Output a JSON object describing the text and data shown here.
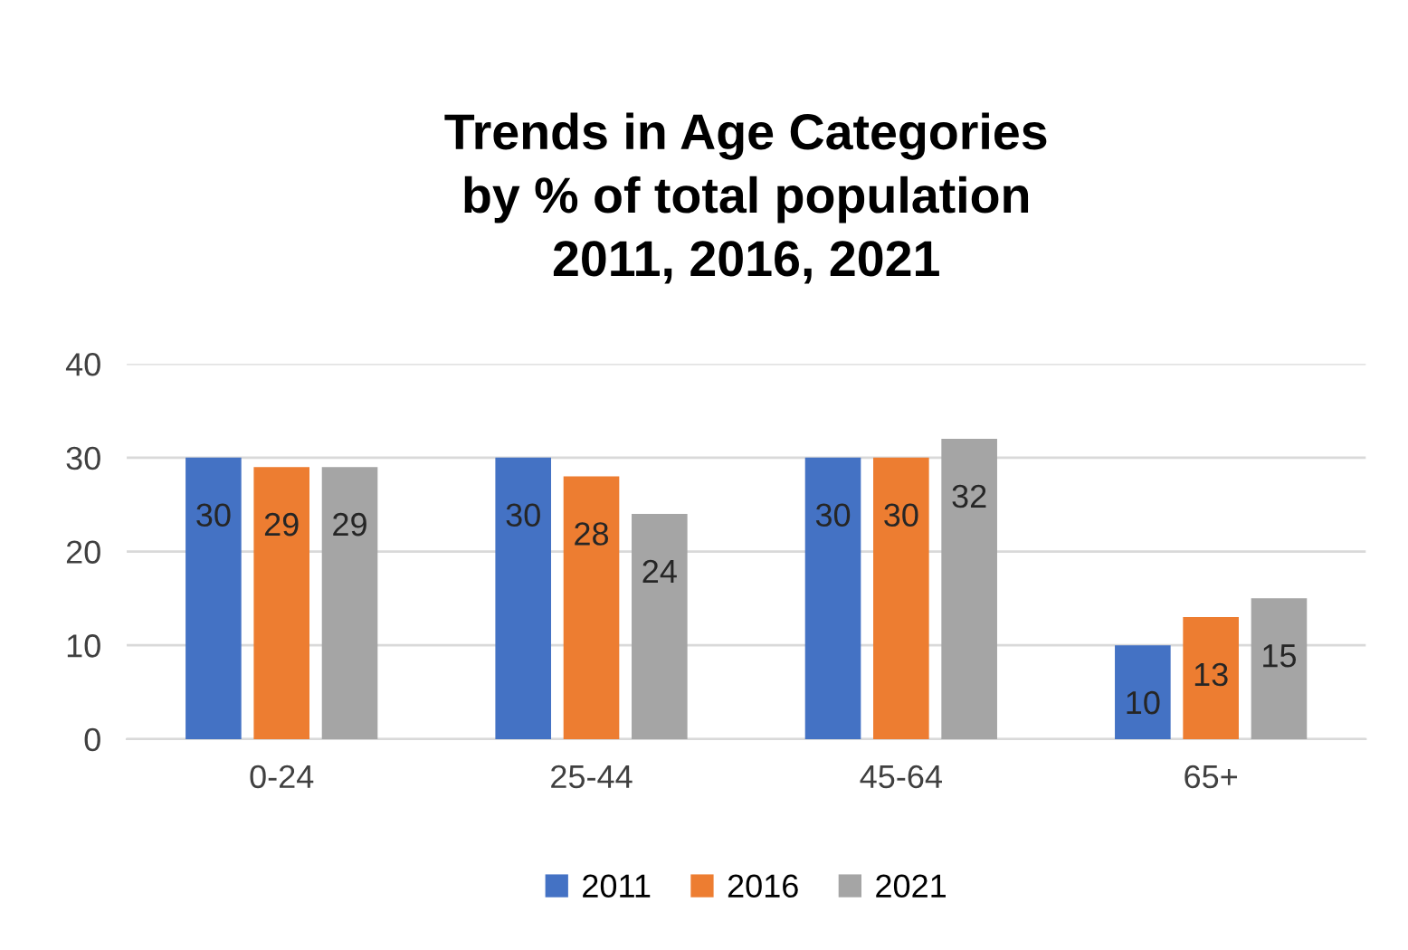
{
  "chart_data": {
    "type": "bar",
    "title": "Trends in Age Categories\nby % of total population\n2011, 2016, 2021",
    "categories": [
      "0-24",
      "25-44",
      "45-64",
      "65+"
    ],
    "series": [
      {
        "name": "2011",
        "color": "#4472c4",
        "values": [
          30,
          30,
          30,
          10
        ]
      },
      {
        "name": "2016",
        "color": "#ed7d31",
        "values": [
          29,
          28,
          30,
          13
        ]
      },
      {
        "name": "2021",
        "color": "#a5a5a5",
        "values": [
          29,
          24,
          32,
          15
        ]
      }
    ],
    "ylim": [
      0,
      40
    ],
    "yticks": [
      0,
      10,
      20,
      30,
      40
    ],
    "grid": "y",
    "legend": "bottom",
    "data_labels": true
  }
}
